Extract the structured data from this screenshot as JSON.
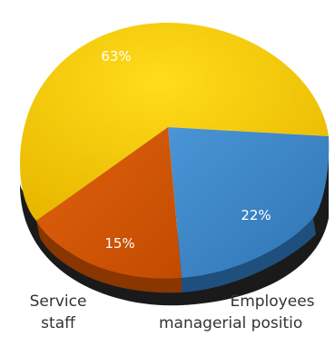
{
  "chart_data": {
    "type": "pie",
    "title": "",
    "slices": [
      {
        "label": "",
        "value": 63,
        "display": "63%",
        "color": "#f2c200"
      },
      {
        "label": "Employees in managerial positions",
        "value": 22,
        "display": "22%",
        "color": "#3a86c8"
      },
      {
        "label": "Service staff",
        "value": 15,
        "display": "15%",
        "color": "#d35400"
      }
    ],
    "category_labels": {
      "service_line1": "Service",
      "service_line2": "staff",
      "employees_line1": "Employees",
      "employees_line2": "managerial positio"
    },
    "legend": "none",
    "style": "3d-tilted"
  }
}
